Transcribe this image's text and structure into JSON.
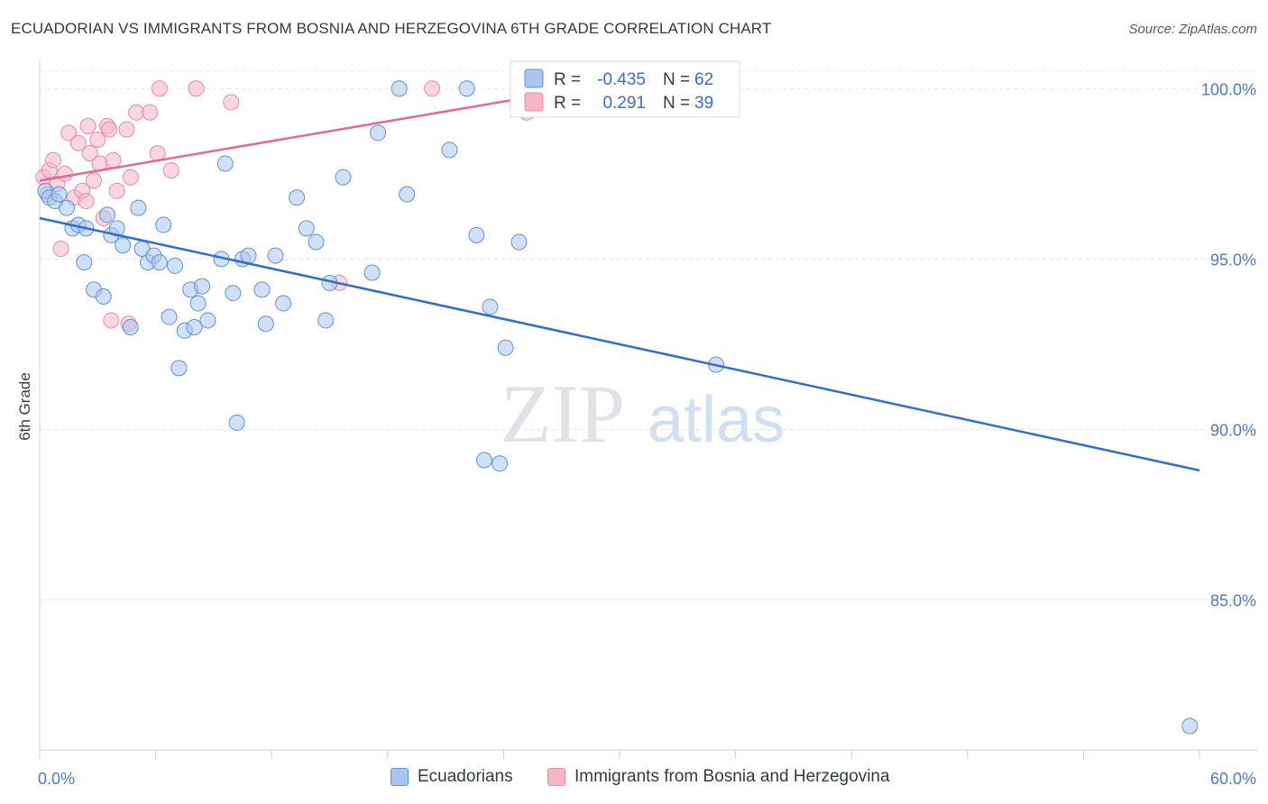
{
  "title": "ECUADORIAN VS IMMIGRANTS FROM BOSNIA AND HERZEGOVINA 6TH GRADE CORRELATION CHART",
  "source": "Source: ZipAtlas.com",
  "watermark": {
    "zip": "ZIP",
    "atlas": "atlas"
  },
  "stats": [
    {
      "r_label": "R =",
      "r_value": "-0.435",
      "n_label": "N =",
      "n_value": "62",
      "color": "#a9c6ee"
    },
    {
      "r_label": "R =",
      "r_value": "0.291",
      "n_label": "N =",
      "n_value": "39",
      "color": "#f7b5c8"
    }
  ],
  "colors": {
    "blue_fill": "#a9c6ee",
    "blue_stroke": "#5f93d8",
    "blue_line": "#2e6fcb",
    "pink_fill": "#f7b5c8",
    "pink_stroke": "#e98aa8",
    "pink_line": "#e26a92"
  },
  "chart_data": {
    "type": "scatter",
    "xlabel": "",
    "ylabel": "6th Grade",
    "xlim": [
      0,
      60
    ],
    "ylim": [
      80.6,
      100.8
    ],
    "x_tick_labels": [
      "0.0%",
      "60.0%"
    ],
    "y_ticks": [
      85,
      90,
      95,
      100
    ],
    "y_tick_labels": [
      "85.0%",
      "90.0%",
      "95.0%",
      "100.0%"
    ],
    "grid": true,
    "legend_position": "bottom",
    "series": [
      {
        "name": "Ecuadorians",
        "trend": {
          "x": [
            0,
            60
          ],
          "y": [
            96.2,
            88.8
          ]
        },
        "points": [
          [
            0.3,
            97.0
          ],
          [
            0.5,
            96.8
          ],
          [
            0.8,
            96.7
          ],
          [
            1.0,
            96.9
          ],
          [
            1.4,
            96.5
          ],
          [
            1.7,
            95.9
          ],
          [
            2.0,
            96.0
          ],
          [
            2.3,
            94.9
          ],
          [
            2.4,
            95.9
          ],
          [
            2.8,
            94.1
          ],
          [
            3.3,
            93.9
          ],
          [
            3.5,
            96.3
          ],
          [
            3.7,
            95.7
          ],
          [
            4.0,
            95.9
          ],
          [
            4.3,
            95.4
          ],
          [
            4.7,
            93.0
          ],
          [
            5.1,
            96.5
          ],
          [
            5.3,
            95.3
          ],
          [
            5.6,
            94.9
          ],
          [
            5.9,
            95.1
          ],
          [
            6.2,
            94.9
          ],
          [
            6.4,
            96.0
          ],
          [
            6.7,
            93.3
          ],
          [
            7.0,
            94.8
          ],
          [
            7.2,
            91.8
          ],
          [
            7.5,
            92.9
          ],
          [
            7.8,
            94.1
          ],
          [
            8.0,
            93.0
          ],
          [
            8.2,
            93.7
          ],
          [
            8.4,
            94.2
          ],
          [
            8.7,
            93.2
          ],
          [
            9.4,
            95.0
          ],
          [
            9.6,
            97.8
          ],
          [
            10.0,
            94.0
          ],
          [
            10.2,
            90.2
          ],
          [
            10.5,
            95.0
          ],
          [
            10.8,
            95.1
          ],
          [
            11.5,
            94.1
          ],
          [
            11.7,
            93.1
          ],
          [
            12.2,
            95.1
          ],
          [
            12.6,
            93.7
          ],
          [
            13.3,
            96.8
          ],
          [
            13.8,
            95.9
          ],
          [
            14.3,
            95.5
          ],
          [
            14.8,
            93.2
          ],
          [
            15.0,
            94.3
          ],
          [
            15.7,
            97.4
          ],
          [
            17.2,
            94.6
          ],
          [
            17.5,
            98.7
          ],
          [
            18.6,
            100.0
          ],
          [
            19.0,
            96.9
          ],
          [
            21.2,
            98.2
          ],
          [
            22.1,
            100.0
          ],
          [
            22.6,
            95.7
          ],
          [
            23.0,
            89.1
          ],
          [
            23.3,
            93.6
          ],
          [
            23.8,
            89.0
          ],
          [
            24.1,
            92.4
          ],
          [
            24.8,
            95.5
          ],
          [
            28.2,
            99.5
          ],
          [
            35.0,
            91.9
          ],
          [
            59.5,
            81.3
          ]
        ]
      },
      {
        "name": "Immigrants from Bosnia and Herzegovina",
        "trend": {
          "x": [
            0,
            30
          ],
          "y": [
            97.3,
            100.2
          ]
        },
        "points": [
          [
            0.2,
            97.4
          ],
          [
            0.4,
            96.9
          ],
          [
            0.5,
            97.6
          ],
          [
            0.7,
            97.9
          ],
          [
            0.9,
            97.2
          ],
          [
            1.1,
            95.3
          ],
          [
            1.3,
            97.5
          ],
          [
            1.5,
            98.7
          ],
          [
            1.8,
            96.8
          ],
          [
            2.0,
            98.4
          ],
          [
            2.2,
            97.0
          ],
          [
            2.4,
            96.7
          ],
          [
            2.5,
            98.9
          ],
          [
            2.6,
            98.1
          ],
          [
            2.8,
            97.3
          ],
          [
            3.0,
            98.5
          ],
          [
            3.1,
            97.8
          ],
          [
            3.3,
            96.2
          ],
          [
            3.5,
            98.9
          ],
          [
            3.6,
            98.8
          ],
          [
            3.7,
            93.2
          ],
          [
            3.8,
            97.9
          ],
          [
            4.0,
            97.0
          ],
          [
            4.5,
            98.8
          ],
          [
            4.6,
            93.1
          ],
          [
            4.7,
            97.4
          ],
          [
            5.0,
            99.3
          ],
          [
            5.7,
            99.3
          ],
          [
            6.1,
            98.1
          ],
          [
            6.2,
            100.0
          ],
          [
            6.8,
            97.6
          ],
          [
            8.1,
            100.0
          ],
          [
            9.9,
            99.6
          ],
          [
            15.5,
            94.3
          ],
          [
            20.3,
            100.0
          ],
          [
            25.2,
            99.3
          ],
          [
            26.5,
            99.8
          ],
          [
            28.0,
            99.9
          ],
          [
            29.5,
            100.1
          ]
        ]
      }
    ]
  }
}
